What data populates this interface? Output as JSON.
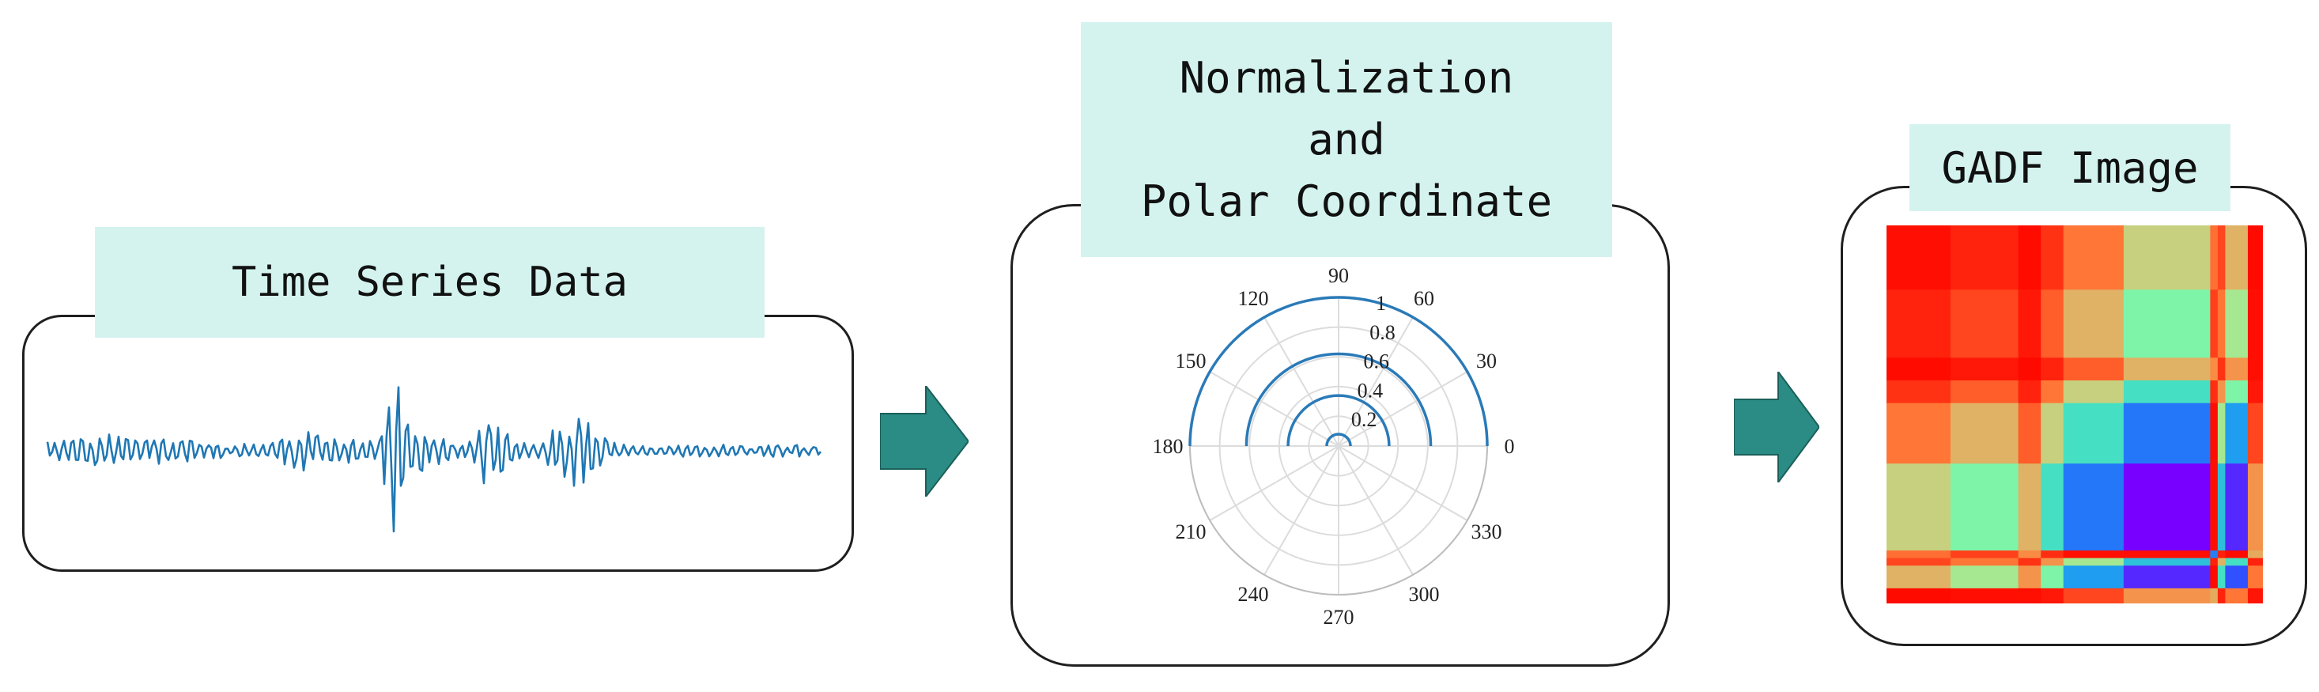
{
  "stages": {
    "time_series": {
      "title": "Time Series Data"
    },
    "polar": {
      "title_lines": [
        "Normalization",
        "and",
        "Polar Coordinate"
      ]
    },
    "gadf": {
      "title": "GADF Image"
    }
  },
  "polar_chart": {
    "angle_ticks": [
      "0",
      "30",
      "60",
      "90",
      "120",
      "150",
      "180",
      "210",
      "240",
      "270",
      "300",
      "330"
    ],
    "radial_ticks": [
      "0.2",
      "0.4",
      "0.6",
      "0.8",
      "1"
    ]
  },
  "colors": {
    "label_bg": "#d4f3ef",
    "arrow": "#2a8c84",
    "signal": "#1f77b4",
    "polar_curve": "#2a7ab8"
  }
}
